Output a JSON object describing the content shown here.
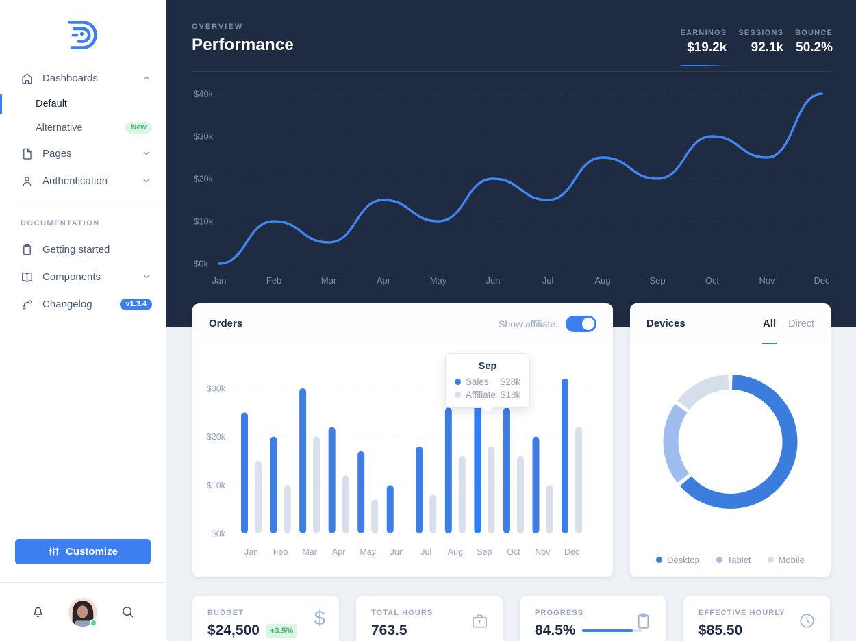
{
  "sidebar": {
    "logo_icon": "brand-logo",
    "items": [
      {
        "type": "parent",
        "label": "Dashboards",
        "icon": "home-icon",
        "chevron": "up"
      },
      {
        "type": "child",
        "label": "Default",
        "active": true
      },
      {
        "type": "child",
        "label": "Alternative",
        "badge": {
          "text": "New",
          "style": "green"
        }
      },
      {
        "type": "parent",
        "label": "Pages",
        "icon": "file-icon",
        "chevron": "down"
      },
      {
        "type": "parent",
        "label": "Authentication",
        "icon": "user-icon",
        "chevron": "down"
      },
      {
        "type": "divider"
      },
      {
        "type": "section",
        "label": "DOCUMENTATION"
      },
      {
        "type": "parent",
        "label": "Getting started",
        "icon": "clipboard-icon"
      },
      {
        "type": "parent",
        "label": "Components",
        "icon": "book-icon",
        "chevron": "down"
      },
      {
        "type": "parent",
        "label": "Changelog",
        "icon": "git-branch-icon",
        "badge": {
          "text": "v1.3.4",
          "style": "blue"
        }
      }
    ],
    "customize_button": {
      "label": "Customize",
      "icon": "sliders-icon"
    },
    "footer_icons": [
      "bell-icon",
      "avatar",
      "search-icon"
    ]
  },
  "header": {
    "eyebrow": "OVERVIEW",
    "title": "Performance",
    "stats": [
      {
        "label": "EARNINGS",
        "value": "$19.2k",
        "active": true
      },
      {
        "label": "SESSIONS",
        "value": "92.1k"
      },
      {
        "label": "BOUNCE",
        "value": "50.2%"
      }
    ]
  },
  "chart_data": [
    {
      "id": "performance",
      "type": "line",
      "title": "Performance (monthly, $k)",
      "x": [
        "Jan",
        "Feb",
        "Mar",
        "Apr",
        "May",
        "Jun",
        "Jul",
        "Aug",
        "Sep",
        "Oct",
        "Nov",
        "Dec"
      ],
      "values": [
        0,
        10,
        5,
        15,
        10,
        20,
        15,
        25,
        20,
        30,
        25,
        40
      ],
      "yticks": [
        "$0k",
        "$10k",
        "$20k",
        "$30k",
        "$40k"
      ],
      "ylim": [
        0,
        40
      ],
      "grid": "dotted-horizontal",
      "line_color": "#4285F4"
    },
    {
      "id": "orders",
      "type": "bar",
      "categories": [
        "Jan",
        "Feb",
        "Mar",
        "Apr",
        "May",
        "Jun",
        "Jul",
        "Aug",
        "Sep",
        "Oct",
        "Nov",
        "Dec"
      ],
      "series": [
        {
          "name": "Sales",
          "color": "#3E7DE6",
          "highlight_color": "#2E7FF7",
          "values": [
            25,
            20,
            30,
            22,
            17,
            10,
            18,
            26,
            28,
            26,
            20,
            32
          ]
        },
        {
          "name": "Affiliate",
          "color": "#D9E0EC",
          "values": [
            15,
            10,
            20,
            12,
            7,
            0,
            8,
            16,
            18,
            16,
            10,
            22
          ]
        }
      ],
      "highlight_index": 8,
      "yticks": [
        "$0k",
        "$10k",
        "$20k",
        "$30k"
      ],
      "ylim": [
        0,
        30
      ],
      "grid": "dotted-horizontal"
    },
    {
      "id": "devices",
      "type": "pie",
      "slices": [
        {
          "label": "Desktop",
          "value": 64,
          "color": "#3B7DDD"
        },
        {
          "label": "Tablet",
          "value": 21,
          "color": "#9FBDEF"
        },
        {
          "label": "Mobile",
          "value": 15,
          "color": "#D5DEEB"
        }
      ]
    }
  ],
  "orders_card": {
    "title": "Orders",
    "toggle_label": "Show affiliate:",
    "toggle_on": true,
    "tooltip": {
      "title": "Sep",
      "rows": [
        {
          "label": "Sales",
          "value": "$28k",
          "color": "#3D7FF0"
        },
        {
          "label": "Affiliate",
          "value": "$18k",
          "color": "#D9E0EC"
        }
      ]
    }
  },
  "devices_card": {
    "title": "Devices",
    "tabs": [
      {
        "label": "All",
        "active": true
      },
      {
        "label": "Direct"
      }
    ]
  },
  "stat_cards": [
    {
      "label": "BUDGET",
      "value": "$24,500",
      "badge": "+3.5%",
      "icon": "dollar-icon"
    },
    {
      "label": "TOTAL HOURS",
      "value": "763.5",
      "icon": "briefcase-icon"
    },
    {
      "label": "PROGRESS",
      "value": "84.5%",
      "progress": 84.5,
      "icon": "clipboard-icon"
    },
    {
      "label": "EFFECTIVE HOURLY",
      "value": "$85.50",
      "icon": "clock-icon"
    }
  ],
  "colors": {
    "accent": "#3D7FF0",
    "hero_background": "#1F2B40",
    "page_background": "#EEF1F6",
    "positive_green": "#3FBA74"
  }
}
